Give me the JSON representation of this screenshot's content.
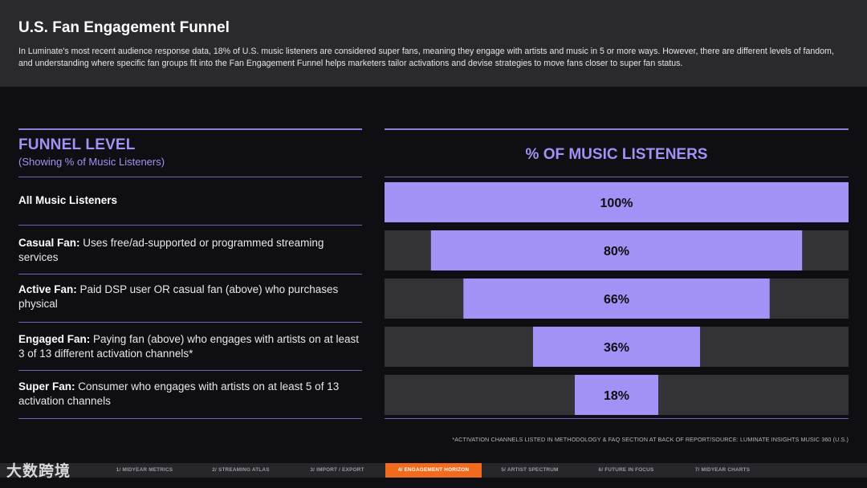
{
  "header": {
    "title": "U.S. Fan Engagement Funnel",
    "description": "In Luminate's most recent audience response data, 18% of U.S. music listeners are considered super fans, meaning they engage with artists and music in 5 or more ways. However, there are different levels of fandom, and understanding where specific fan groups fit into the Fan Engagement Funnel helps marketers tailor activations and devise strategies to move fans closer to super fan status."
  },
  "table": {
    "heading": "FUNNEL LEVEL",
    "subheading": "(Showing % of Music Listeners)",
    "rows": [
      {
        "name": "All Music Listeners",
        "desc": ""
      },
      {
        "name": "Casual Fan:",
        "desc": "Uses free/ad-supported or programmed streaming services"
      },
      {
        "name": "Active Fan:",
        "desc": "Paid DSP user OR casual fan (above) who purchases physical"
      },
      {
        "name": "Engaged Fan:",
        "desc": "Paying fan (above) who engages with artists on at least 3 of 13 different activation channels*"
      },
      {
        "name": "Super Fan:",
        "desc": "Consumer who engages with artists on at least 5 of 13 activation channels"
      }
    ]
  },
  "chart_data": {
    "type": "bar",
    "title": "% OF MUSIC LISTENERS",
    "categories": [
      "All Music Listeners",
      "Casual Fan",
      "Active Fan",
      "Engaged Fan",
      "Super Fan"
    ],
    "values": [
      100,
      80,
      66,
      36,
      18
    ],
    "labels": [
      "100%",
      "80%",
      "66%",
      "36%",
      "18%"
    ],
    "ylim": [
      0,
      100
    ],
    "colors": {
      "bar": "#a292f5",
      "track": "#333236",
      "label": "#0f0e13"
    }
  },
  "footnote": "*ACTIVATION CHANNELS LISTED IN METHODOLOGY & FAQ SECTION AT BACK OF REPORT/SOURCE: LUMINATE INSIGHTS MUSIC 360 (U.S.)",
  "nav": {
    "logo": "大数跨境",
    "items": [
      {
        "label": "1/ MIDYEAR METRICS",
        "active": false
      },
      {
        "label": "2/ STREAMING ATLAS",
        "active": false
      },
      {
        "label": "3/ IMPORT / EXPORT",
        "active": false
      },
      {
        "label": "4/ ENGAGEMENT HORIZON",
        "active": true
      },
      {
        "label": "5/ ARTIST SPECTRUM",
        "active": false
      },
      {
        "label": "6/ FUTURE IN FOCUS",
        "active": false
      },
      {
        "label": "7/ MIDYEAR CHARTS",
        "active": false
      }
    ]
  }
}
